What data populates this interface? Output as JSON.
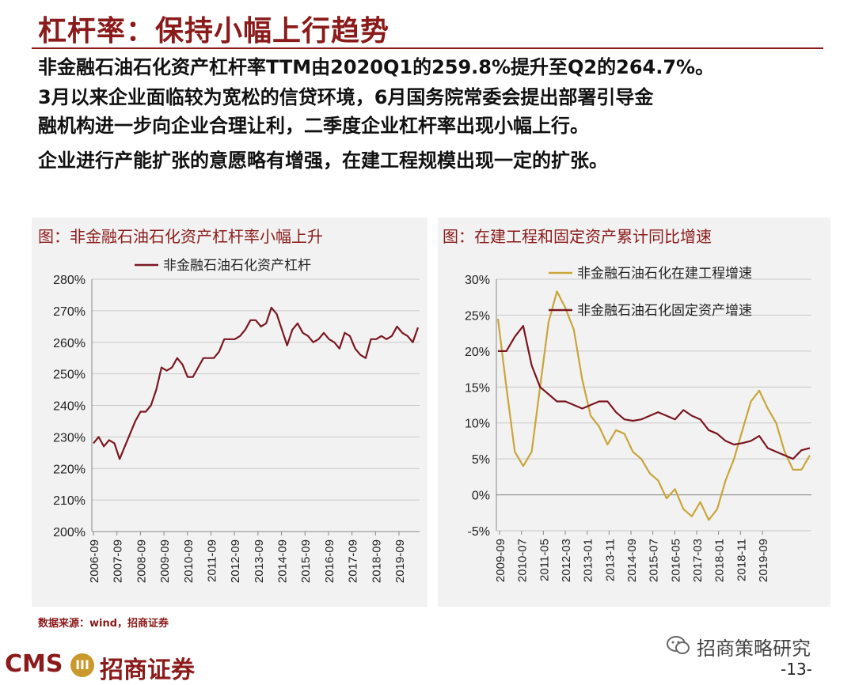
{
  "header": {
    "title": "杠杆率：保持小幅上行趋势"
  },
  "body": {
    "line1": "非金融石油石化资产杠杆率TTM由2020Q1的259.8%提升至Q2的264.7%。",
    "line2": "3月以来企业面临较为宽松的信贷环境，6月国务院常委会提出部署引导金",
    "line3": "融机构进一步向企业合理让利，二季度企业杠杆率出现小幅上行。",
    "line4": "企业进行产能扩张的意愿略有增强，在建工程规模出现一定的扩张。"
  },
  "footer": {
    "source": "数据来源：wind，招商证券",
    "logo_en": "CMS",
    "logo_badge": "III",
    "logo_cn": "招商证券",
    "wechat": "招商策略研究",
    "page": "-13-"
  },
  "colors": {
    "brand": "#8b1a1a",
    "series_dark": "#7a1620",
    "series_gold": "#c9a53a"
  },
  "chart_data": [
    {
      "type": "line",
      "title": "图：非金融石油石化资产杠杆率小幅上升",
      "ylim": [
        2.0,
        2.8
      ],
      "yticks": [
        "280%",
        "270%",
        "260%",
        "250%",
        "240%",
        "230%",
        "220%",
        "210%",
        "200%"
      ],
      "xticks": [
        "2006-09",
        "2007-09",
        "2008-09",
        "2009-09",
        "2010-09",
        "2011-09",
        "2012-09",
        "2013-09",
        "2014-09",
        "2015-09",
        "2016-09",
        "2017-09",
        "2018-09",
        "2019-09"
      ],
      "series": [
        {
          "name": "非金融石油石化资产杠杆",
          "values": [
            2.28,
            2.3,
            2.27,
            2.29,
            2.28,
            2.23,
            2.27,
            2.31,
            2.35,
            2.38,
            2.38,
            2.4,
            2.45,
            2.52,
            2.51,
            2.52,
            2.55,
            2.53,
            2.49,
            2.49,
            2.52,
            2.55,
            2.55,
            2.55,
            2.57,
            2.61,
            2.61,
            2.61,
            2.62,
            2.64,
            2.67,
            2.67,
            2.65,
            2.66,
            2.71,
            2.69,
            2.64,
            2.59,
            2.64,
            2.66,
            2.63,
            2.62,
            2.6,
            2.61,
            2.63,
            2.61,
            2.6,
            2.58,
            2.63,
            2.62,
            2.58,
            2.56,
            2.55,
            2.61,
            2.61,
            2.62,
            2.61,
            2.62,
            2.65,
            2.63,
            2.62,
            2.6,
            2.647
          ]
        }
      ]
    },
    {
      "type": "line",
      "title": "图：在建工程和固定资产累计同比增速",
      "ylim": [
        -0.05,
        0.3
      ],
      "yticks": [
        "30%",
        "25%",
        "20%",
        "15%",
        "10%",
        "5%",
        "0%",
        "-5%"
      ],
      "xticks": [
        "2009-09",
        "2010-07",
        "2011-05",
        "2012-03",
        "2013-01",
        "2013-11",
        "2014-09",
        "2015-07",
        "2016-05",
        "2017-03",
        "2018-01",
        "2018-11",
        "2019-09"
      ],
      "series": [
        {
          "name": "非金融石油石化在建工程增速",
          "values": [
            0.245,
            0.15,
            0.06,
            0.04,
            0.06,
            0.15,
            0.24,
            0.283,
            0.26,
            0.23,
            0.16,
            0.11,
            0.095,
            0.07,
            0.09,
            0.085,
            0.06,
            0.05,
            0.03,
            0.02,
            -0.005,
            0.008,
            -0.02,
            -0.03,
            -0.01,
            -0.035,
            -0.02,
            0.02,
            0.05,
            0.09,
            0.13,
            0.145,
            0.12,
            0.1,
            0.06,
            0.035,
            0.035,
            0.055
          ]
        },
        {
          "name": "非金融石油石化固定资产增速",
          "values": [
            0.2,
            0.2,
            0.22,
            0.235,
            0.18,
            0.15,
            0.14,
            0.13,
            0.13,
            0.125,
            0.12,
            0.125,
            0.13,
            0.13,
            0.115,
            0.105,
            0.103,
            0.105,
            0.11,
            0.115,
            0.11,
            0.105,
            0.118,
            0.11,
            0.105,
            0.09,
            0.085,
            0.075,
            0.07,
            0.072,
            0.075,
            0.082,
            0.065,
            0.06,
            0.055,
            0.05,
            0.062,
            0.065
          ]
        }
      ]
    }
  ]
}
